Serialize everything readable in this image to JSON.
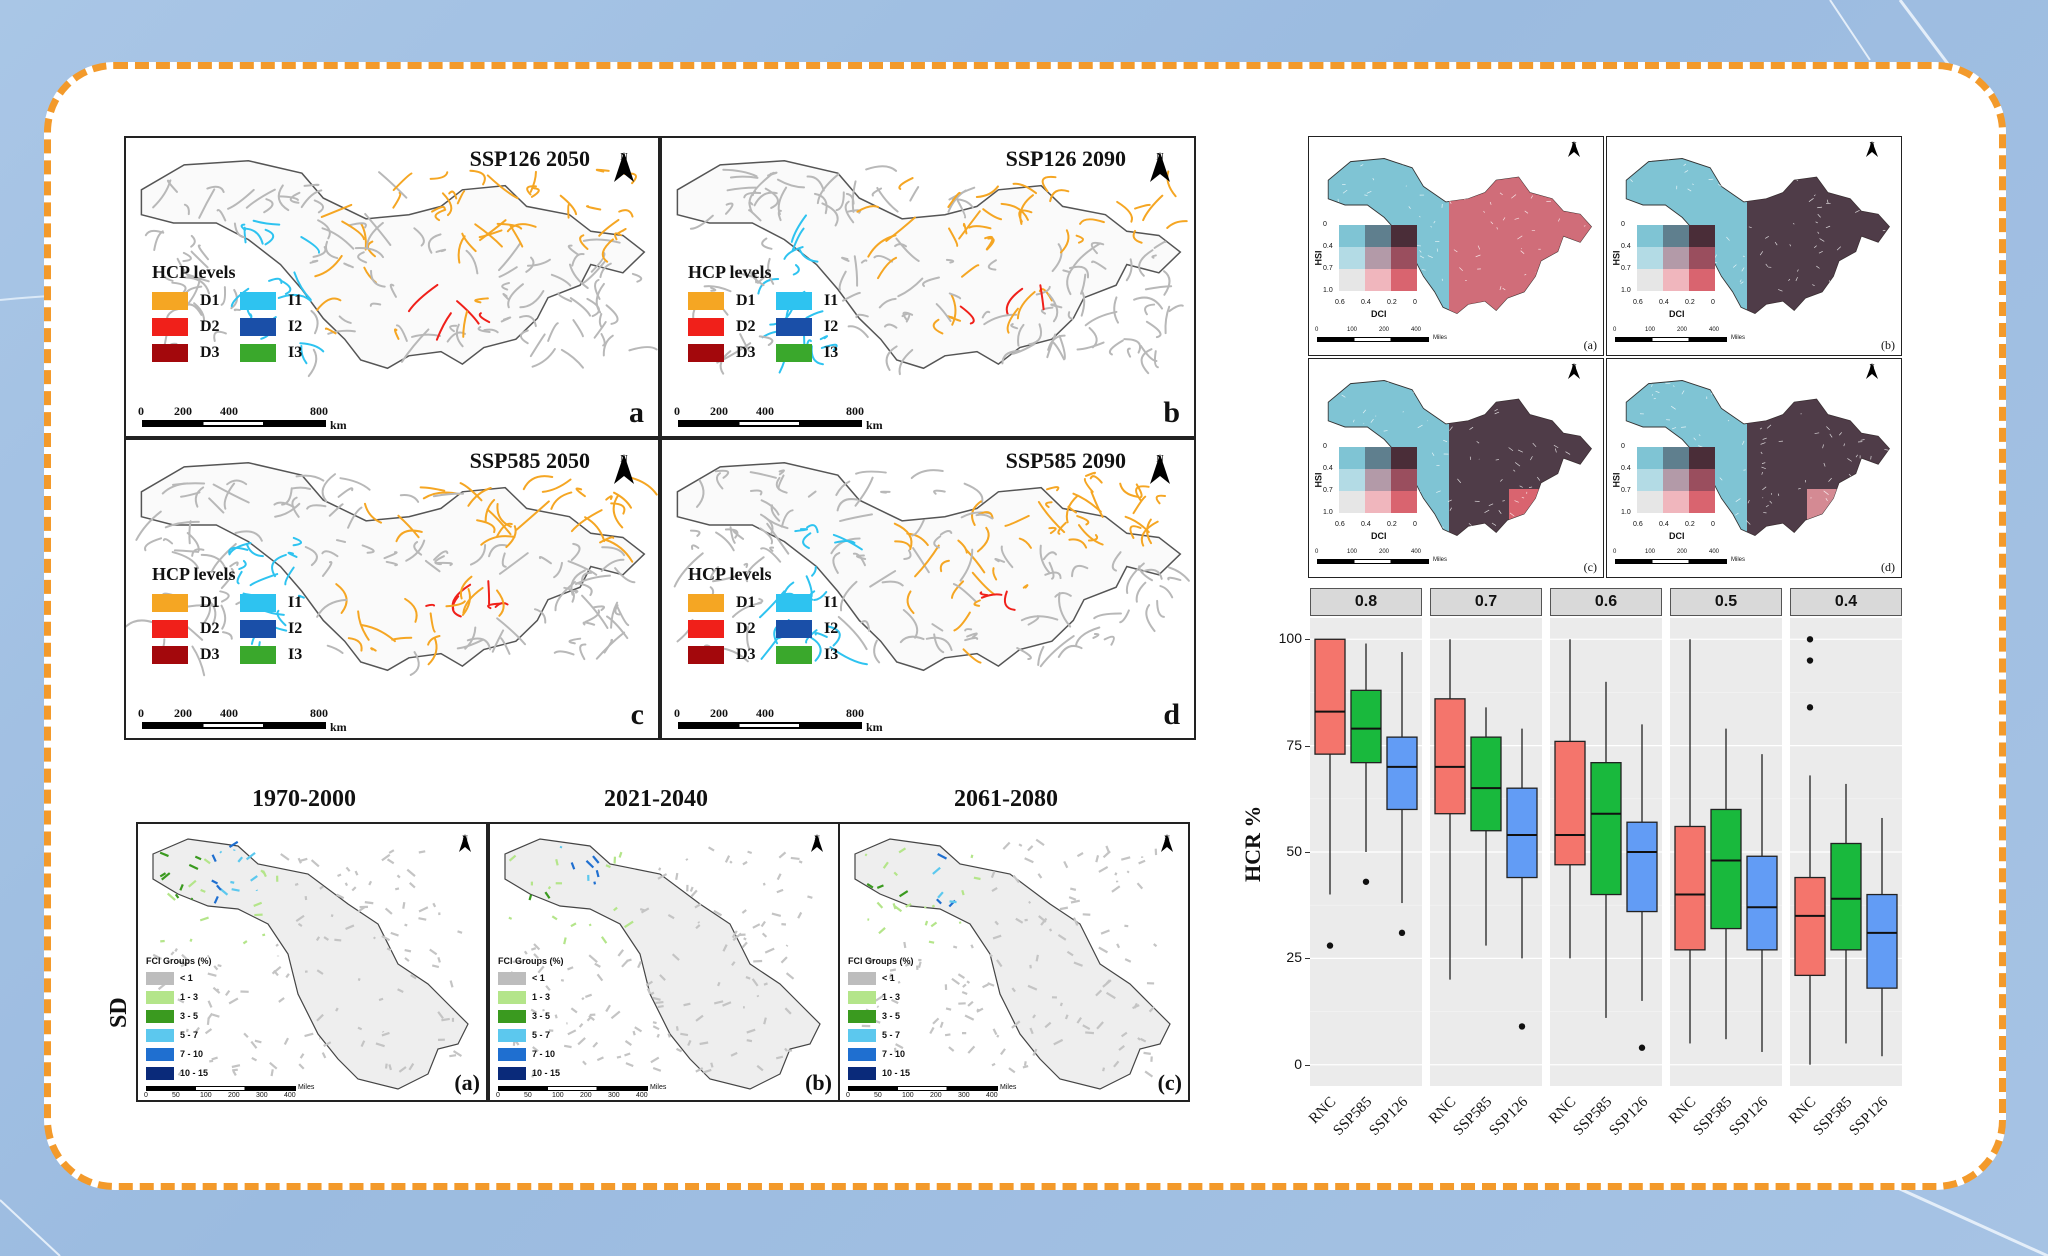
{
  "hcp_panels": [
    {
      "title": "SSP126 2050",
      "label": "a"
    },
    {
      "title": "SSP126 2090",
      "label": "b"
    },
    {
      "title": "SSP585 2050",
      "label": "c"
    },
    {
      "title": "SSP585 2090",
      "label": "d"
    }
  ],
  "hcp_legend": {
    "title": "HCP levels",
    "items": [
      {
        "code": "D1",
        "color": "#f5a623"
      },
      {
        "code": "D2",
        "color": "#f0201a"
      },
      {
        "code": "D3",
        "color": "#a3080c"
      },
      {
        "code": "I1",
        "color": "#2ec3f0"
      },
      {
        "code": "I2",
        "color": "#1a4fa8"
      },
      {
        "code": "I3",
        "color": "#3aa82c"
      }
    ]
  },
  "scale": {
    "ticks": [
      "0",
      "200",
      "400",
      "800"
    ],
    "unit": "km",
    "north": "N"
  },
  "sd_section": {
    "row_label": "SD",
    "periods": [
      {
        "title": "1970-2000",
        "label": "(a)"
      },
      {
        "title": "2021-2040",
        "label": "(b)"
      },
      {
        "title": "2061-2080",
        "label": "(c)"
      }
    ],
    "legend_title": "FCI Groups (%)",
    "legend": [
      {
        "range": "< 1",
        "color": "#bdbdbd"
      },
      {
        "range": "1 - 3",
        "color": "#b4e58a"
      },
      {
        "range": "3 - 5",
        "color": "#3a9a1f"
      },
      {
        "range": "5 - 7",
        "color": "#5cc8ee"
      },
      {
        "range": "7 - 10",
        "color": "#1f6fd0"
      },
      {
        "range": "10 - 15",
        "color": "#0a2a7a"
      }
    ],
    "scale_ticks": [
      "0",
      "50",
      "100",
      "200",
      "300",
      "400"
    ],
    "scale_unit": "Miles"
  },
  "bivariate": {
    "panels": [
      "(a)",
      "(b)",
      "(c)",
      "(d)"
    ],
    "hsi_label": "HSI",
    "dci_label": "DCI",
    "hsi_ticks": [
      "0",
      "0.4",
      "0.7",
      "1.0"
    ],
    "dci_ticks": [
      "0.6",
      "0.4",
      "0.2",
      "0"
    ],
    "grid_colors": [
      [
        "#7fc4d4",
        "#5f7f8e",
        "#4a2d38"
      ],
      [
        "#b3dbe5",
        "#b39aa8",
        "#9a4e5e"
      ],
      [
        "#e6e6e6",
        "#f0b6bd",
        "#d9646f"
      ]
    ],
    "scale_ticks": [
      "0",
      "100",
      "200",
      "400"
    ],
    "scale_unit": "Miles"
  },
  "chart_data": {
    "type": "box",
    "ylabel": "HCR %",
    "ylim": [
      0,
      100
    ],
    "yticks": [
      0,
      25,
      50,
      75,
      100
    ],
    "groups": [
      "RNC",
      "SSP585",
      "SSP126"
    ],
    "group_colors": {
      "RNC": "#f4756c",
      "SSP585": "#19b93d",
      "SSP126": "#629cf5"
    },
    "facets": [
      {
        "label": "0.8",
        "boxes": [
          {
            "group": "RNC",
            "min": 40,
            "q1": 73,
            "median": 83,
            "q3": 100,
            "max": 100,
            "outliers": [
              28
            ]
          },
          {
            "group": "SSP585",
            "min": 50,
            "q1": 71,
            "median": 79,
            "q3": 88,
            "max": 99,
            "outliers": [
              43
            ]
          },
          {
            "group": "SSP126",
            "min": 38,
            "q1": 60,
            "median": 70,
            "q3": 77,
            "max": 97,
            "outliers": [
              31
            ]
          }
        ]
      },
      {
        "label": "0.7",
        "boxes": [
          {
            "group": "RNC",
            "min": 20,
            "q1": 59,
            "median": 70,
            "q3": 86,
            "max": 100,
            "outliers": []
          },
          {
            "group": "SSP585",
            "min": 28,
            "q1": 55,
            "median": 65,
            "q3": 77,
            "max": 84,
            "outliers": []
          },
          {
            "group": "SSP126",
            "min": 25,
            "q1": 44,
            "median": 54,
            "q3": 65,
            "max": 79,
            "outliers": [
              9
            ]
          }
        ]
      },
      {
        "label": "0.6",
        "boxes": [
          {
            "group": "RNC",
            "min": 25,
            "q1": 47,
            "median": 54,
            "q3": 76,
            "max": 100,
            "outliers": []
          },
          {
            "group": "SSP585",
            "min": 11,
            "q1": 40,
            "median": 59,
            "q3": 71,
            "max": 90,
            "outliers": []
          },
          {
            "group": "SSP126",
            "min": 15,
            "q1": 36,
            "median": 50,
            "q3": 57,
            "max": 80,
            "outliers": [
              4
            ]
          }
        ]
      },
      {
        "label": "0.5",
        "boxes": [
          {
            "group": "RNC",
            "min": 5,
            "q1": 27,
            "median": 40,
            "q3": 56,
            "max": 100,
            "outliers": []
          },
          {
            "group": "SSP585",
            "min": 6,
            "q1": 32,
            "median": 48,
            "q3": 60,
            "max": 79,
            "outliers": []
          },
          {
            "group": "SSP126",
            "min": 3,
            "q1": 27,
            "median": 37,
            "q3": 49,
            "max": 73,
            "outliers": []
          }
        ]
      },
      {
        "label": "0.4",
        "boxes": [
          {
            "group": "RNC",
            "min": 0,
            "q1": 21,
            "median": 35,
            "q3": 44,
            "max": 68,
            "outliers": [
              84,
              95,
              100
            ]
          },
          {
            "group": "SSP585",
            "min": 5,
            "q1": 27,
            "median": 39,
            "q3": 52,
            "max": 66,
            "outliers": []
          },
          {
            "group": "SSP126",
            "min": 2,
            "q1": 18,
            "median": 31,
            "q3": 40,
            "max": 58,
            "outliers": []
          }
        ]
      }
    ]
  }
}
